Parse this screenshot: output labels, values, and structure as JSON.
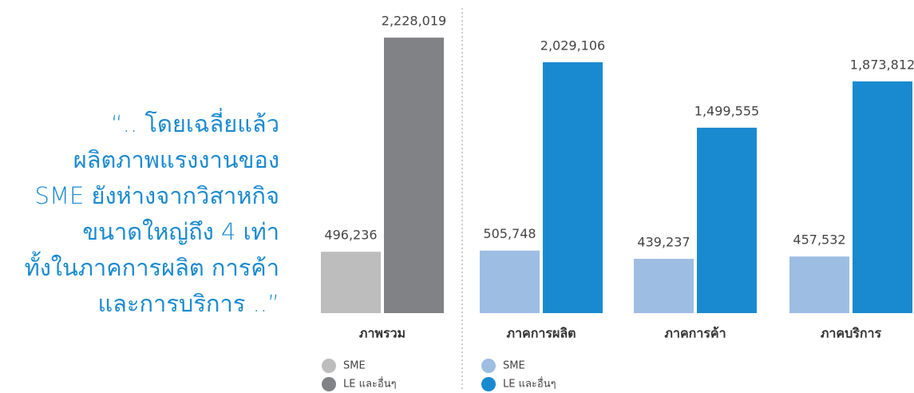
{
  "quote": {
    "lines": [
      "“.. โดยเฉลี่ยแล้ว",
      "ผลิตภาพแรงงานของ",
      "SME ยังห่างจากวิสาหกิจ",
      "ขนาดใหญ่ถึง 4 เท่า",
      "ทั้งในภาคการผลิต การค้า",
      "และการบริการ ..”"
    ]
  },
  "chart_data": {
    "type": "bar",
    "categories": [
      "ภาพรวม",
      "ภาคการผลิต",
      "ภาคการค้า",
      "ภาคบริการ"
    ],
    "series": [
      {
        "name": "SME",
        "colors": [
          "#bdbdbd",
          "#9dbde3",
          "#9dbde3",
          "#9dbde3"
        ],
        "values": [
          496236,
          505748,
          439237,
          457532
        ],
        "value_labels": [
          "496,236",
          "505,748",
          "439,237",
          "457,532"
        ]
      },
      {
        "name": "LE และอื่นๆ",
        "colors": [
          "#808285",
          "#1a8ad0",
          "#1a8ad0",
          "#1a8ad0"
        ],
        "values": [
          2228019,
          2029106,
          1499555,
          1873812
        ],
        "value_labels": [
          "2,228,019",
          "2,029,106",
          "1,499,555",
          "1,873,812"
        ]
      }
    ],
    "ylim": [
      0,
      2500000
    ]
  }
}
